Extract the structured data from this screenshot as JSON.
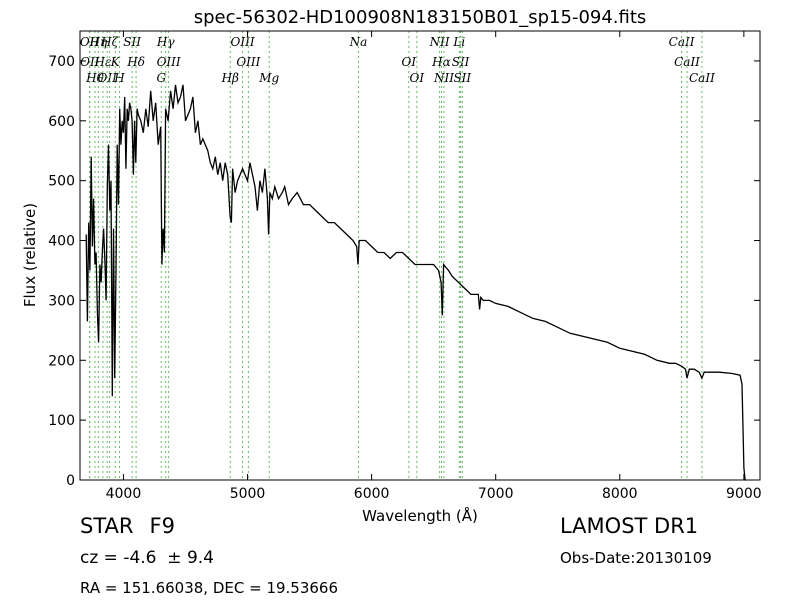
{
  "chart_data": {
    "type": "line",
    "title": "spec-56302-HD100908N183150B01_sp15-094.fits",
    "xlabel": "Wavelength (Å)",
    "ylabel": "Flux (relative)",
    "xlim": [
      3650,
      9130
    ],
    "ylim": [
      0,
      750
    ],
    "xticks": [
      4000,
      5000,
      6000,
      7000,
      8000,
      9000
    ],
    "yticks": [
      0,
      100,
      200,
      300,
      400,
      500,
      600,
      700
    ],
    "grid": false,
    "line_color": "#000000",
    "marker_color": "#66bb66",
    "series": [
      {
        "x": [
          3700,
          3710,
          3720,
          3730,
          3740,
          3750,
          3760,
          3770,
          3780,
          3790,
          3800,
          3810,
          3820,
          3830,
          3840,
          3850,
          3860,
          3870,
          3880,
          3890,
          3900,
          3910,
          3920,
          3930,
          3940,
          3950,
          3960,
          3970,
          3980,
          3990,
          4000,
          4010,
          4020,
          4030,
          4040,
          4050,
          4060,
          4070,
          4080,
          4090,
          4100,
          4110,
          4120,
          4140,
          4160,
          4180,
          4200,
          4220,
          4240,
          4260,
          4280,
          4300,
          4310,
          4320,
          4330,
          4340,
          4360,
          4380,
          4400,
          4420,
          4440,
          4460,
          4480,
          4500,
          4520,
          4540,
          4560,
          4580,
          4600,
          4620,
          4640,
          4660,
          4680,
          4700,
          4720,
          4740,
          4760,
          4780,
          4800,
          4820,
          4840,
          4860,
          4870,
          4880,
          4900,
          4920,
          4940,
          4960,
          4980,
          5000,
          5020,
          5040,
          5060,
          5080,
          5100,
          5120,
          5140,
          5160,
          5170,
          5180,
          5200,
          5220,
          5250,
          5280,
          5300,
          5330,
          5360,
          5400,
          5450,
          5500,
          5550,
          5600,
          5650,
          5700,
          5750,
          5800,
          5850,
          5880,
          5890,
          5900,
          5950,
          6000,
          6050,
          6100,
          6150,
          6200,
          6250,
          6300,
          6350,
          6400,
          6450,
          6500,
          6540,
          6560,
          6570,
          6580,
          6620,
          6650,
          6700,
          6750,
          6800,
          6860,
          6870,
          6880,
          6900,
          6950,
          7000,
          7100,
          7200,
          7300,
          7400,
          7500,
          7600,
          7700,
          7800,
          7900,
          8000,
          8100,
          8200,
          8300,
          8400,
          8450,
          8500,
          8530,
          8542,
          8560,
          8600,
          8640,
          8662,
          8680,
          8700,
          8800,
          8900,
          8970,
          8985,
          9000,
          9010,
          9020
        ],
        "y": [
          410,
          265,
          430,
          350,
          540,
          390,
          470,
          360,
          380,
          280,
          230,
          360,
          330,
          380,
          420,
          370,
          300,
          490,
          560,
          450,
          500,
          140,
          420,
          170,
          350,
          560,
          460,
          620,
          560,
          600,
          580,
          640,
          520,
          620,
          600,
          630,
          620,
          600,
          510,
          600,
          530,
          620,
          610,
          600,
          580,
          620,
          590,
          650,
          600,
          630,
          560,
          590,
          360,
          420,
          380,
          620,
          600,
          650,
          620,
          660,
          630,
          640,
          660,
          600,
          610,
          620,
          640,
          580,
          600,
          560,
          570,
          560,
          550,
          530,
          520,
          540,
          510,
          530,
          500,
          530,
          510,
          440,
          430,
          520,
          480,
          500,
          510,
          520,
          510,
          500,
          530,
          510,
          490,
          450,
          500,
          480,
          520,
          470,
          410,
          480,
          470,
          490,
          470,
          480,
          490,
          460,
          470,
          480,
          460,
          460,
          450,
          440,
          430,
          430,
          420,
          410,
          400,
          390,
          360,
          400,
          400,
          390,
          380,
          380,
          370,
          380,
          380,
          370,
          360,
          360,
          360,
          360,
          350,
          330,
          275,
          360,
          350,
          340,
          330,
          320,
          310,
          310,
          285,
          305,
          300,
          300,
          295,
          290,
          280,
          270,
          265,
          255,
          245,
          240,
          235,
          230,
          220,
          215,
          210,
          200,
          195,
          195,
          190,
          185,
          170,
          185,
          185,
          180,
          170,
          180,
          180,
          180,
          178,
          175,
          160,
          20,
          0,
          0
        ]
      }
    ],
    "markers": [
      {
        "x": 3727,
        "label": "OII"
      },
      {
        "x": 3729,
        "label": "OII"
      },
      {
        "x": 3771,
        "label": "Hθ"
      },
      {
        "x": 3798,
        "label": "Hη"
      },
      {
        "x": 3835,
        "label": "Hε"
      },
      {
        "x": 3869,
        "label": "OII"
      },
      {
        "x": 3889,
        "label": "Hζ"
      },
      {
        "x": 3934,
        "label": "K"
      },
      {
        "x": 3968,
        "label": "H"
      },
      {
        "x": 4070,
        "label": "SII"
      },
      {
        "x": 4102,
        "label": "Hδ"
      },
      {
        "x": 4305,
        "label": "G"
      },
      {
        "x": 4341,
        "label": "Hγ"
      },
      {
        "x": 4364,
        "label": "OIII"
      },
      {
        "x": 4861,
        "label": "Hβ"
      },
      {
        "x": 4960,
        "label": "OIII"
      },
      {
        "x": 5007,
        "label": "OIII"
      },
      {
        "x": 5175,
        "label": "Mg"
      },
      {
        "x": 5894,
        "label": "Na"
      },
      {
        "x": 6300,
        "label": "OI"
      },
      {
        "x": 6364,
        "label": "OI"
      },
      {
        "x": 6548,
        "label": "NII"
      },
      {
        "x": 6563,
        "label": "Hα"
      },
      {
        "x": 6583,
        "label": "NII"
      },
      {
        "x": 6707,
        "label": "Li"
      },
      {
        "x": 6717,
        "label": "SII"
      },
      {
        "x": 6731,
        "label": "SII"
      },
      {
        "x": 8498,
        "label": "CaII"
      },
      {
        "x": 8542,
        "label": "CaII"
      },
      {
        "x": 8662,
        "label": "CaII"
      }
    ]
  },
  "info": {
    "object_class": "STAR",
    "subclass": "F9",
    "survey": "LAMOST DR1",
    "cz_text": "cz = -4.6  ± 9.4",
    "obs_date": "Obs-Date:20130109",
    "radec": "RA = 151.66038, DEC = 19.53666"
  }
}
